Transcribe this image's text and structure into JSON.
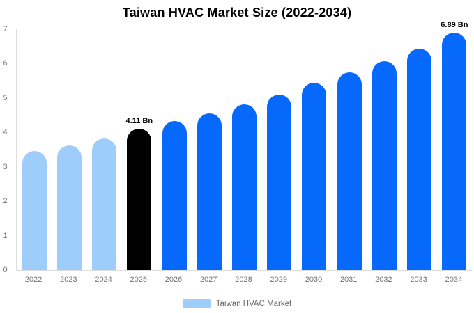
{
  "chart_data": {
    "type": "bar",
    "title": "Taiwan HVAC Market Size (2022-2034)",
    "categories": [
      "2022",
      "2023",
      "2024",
      "2025",
      "2026",
      "2027",
      "2028",
      "2029",
      "2030",
      "2031",
      "2032",
      "2033",
      "2034"
    ],
    "series": [
      {
        "name": "Taiwan HVAC Market",
        "values": [
          3.45,
          3.62,
          3.82,
          4.11,
          4.32,
          4.56,
          4.82,
          5.1,
          5.44,
          5.74,
          6.07,
          6.44,
          6.89
        ]
      }
    ],
    "unit": "Bn",
    "ylim": [
      0,
      7
    ],
    "yticks": [
      0,
      1,
      2,
      3,
      4,
      5,
      6,
      7
    ],
    "grid": false,
    "legend_position": "bottom",
    "bar_colors": [
      "#9FCDFB",
      "#9FCDFB",
      "#9FCDFB",
      "#000000",
      "#0768FC",
      "#0768FC",
      "#0768FC",
      "#0768FC",
      "#0768FC",
      "#0768FC",
      "#0768FC",
      "#0768FC",
      "#0768FC"
    ],
    "annotations": [
      {
        "category": "2025",
        "text": "4.11 Bn"
      },
      {
        "category": "2034",
        "text": "6.89 Bn"
      }
    ]
  },
  "legend": {
    "label": "Taiwan HVAC Market",
    "swatch_color": "#9FCDFB"
  },
  "colors": {
    "bar_light": "#9FCDFB",
    "bar_highlight": "#000000",
    "bar_primary": "#0768FC",
    "axis_line": "#DDDDDD",
    "tick_text": "#757575",
    "legend_text": "#666666",
    "title_text": "#000000",
    "label_text": "#000000"
  }
}
